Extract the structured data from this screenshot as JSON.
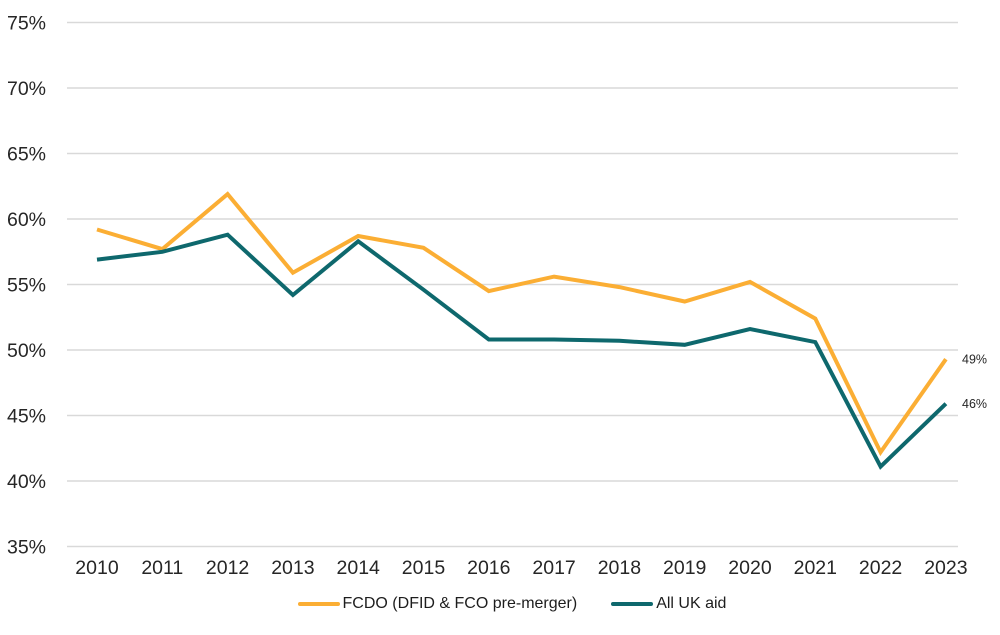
{
  "chart_data": {
    "type": "line",
    "title": "",
    "xlabel": "",
    "ylabel": "",
    "grid": "horizontal",
    "grid_color": "#D9D9D9",
    "text_color": "#262626",
    "legend_position": "bottom",
    "categories": [
      "2010",
      "2011",
      "2012",
      "2013",
      "2014",
      "2015",
      "2016",
      "2017",
      "2018",
      "2019",
      "2020",
      "2021",
      "2022",
      "2023"
    ],
    "y_axis": {
      "min": 35,
      "max": 75,
      "step": 5,
      "ticks": [
        {
          "value": 75,
          "label": "75%"
        },
        {
          "value": 70,
          "label": "70%"
        },
        {
          "value": 65,
          "label": "65%"
        },
        {
          "value": 60,
          "label": "60%"
        },
        {
          "value": 55,
          "label": "55%"
        },
        {
          "value": 50,
          "label": "50%"
        },
        {
          "value": 45,
          "label": "45%"
        },
        {
          "value": 40,
          "label": "40%"
        },
        {
          "value": 35,
          "label": "35%"
        }
      ]
    },
    "series": [
      {
        "name": "FCDO (DFID & FCO pre-merger)",
        "color": "#FBAE34",
        "values": [
          59.2,
          57.7,
          61.9,
          55.9,
          58.7,
          57.8,
          54.5,
          55.6,
          54.8,
          53.7,
          55.2,
          52.4,
          42.2,
          49.3
        ],
        "end_label": "49%"
      },
      {
        "name": "All UK aid",
        "color": "#0E686D",
        "values": [
          56.9,
          57.5,
          58.8,
          54.2,
          58.3,
          54.6,
          50.8,
          50.8,
          50.7,
          50.4,
          51.6,
          50.6,
          41.1,
          45.9
        ],
        "end_label": "46%"
      }
    ]
  }
}
